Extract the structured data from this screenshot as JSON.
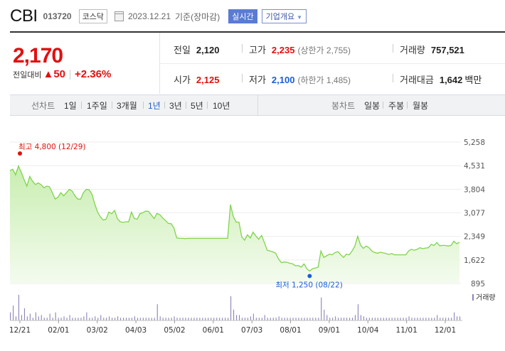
{
  "stock": {
    "name": "CBI",
    "code": "013720",
    "market": "코스닥",
    "date": "2023.12.21",
    "basis": "기준(장마감)",
    "realtime_label": "실시간",
    "company_label": "기업개요",
    "price": "2,170",
    "change_label": "전일대비",
    "change_arrow": "▲",
    "change_value": "50",
    "change_pct": "+2.36%"
  },
  "stats": {
    "prev_close": {
      "label": "전일",
      "value": "2,120"
    },
    "high": {
      "label": "고가",
      "value": "2,235",
      "sub": "(상한가 2,755)"
    },
    "volume": {
      "label": "거래량",
      "value": "757,521"
    },
    "open": {
      "label": "시가",
      "value": "2,125"
    },
    "low": {
      "label": "저가",
      "value": "2,100",
      "sub": "(하한가 1,485)"
    },
    "amount": {
      "label": "거래대금",
      "value": "1,642",
      "unit": "백만"
    }
  },
  "tabs": {
    "line_label": "선차트",
    "line_periods": [
      "1일",
      "1주일",
      "3개월",
      "1년",
      "3년",
      "5년",
      "10년"
    ],
    "active_period": "1년",
    "candle_label": "봉차트",
    "candle_periods": [
      "일봉",
      "주봉",
      "월봉"
    ]
  },
  "chart_data": {
    "type": "area",
    "x_tick_labels": [
      "12/21",
      "02/01",
      "03/02",
      "04/03",
      "05/02",
      "06/01",
      "07/03",
      "08/01",
      "09/01",
      "10/04",
      "11/01",
      "12/01"
    ],
    "y_tick_labels": [
      "5,258",
      "4,531",
      "3,804",
      "3,077",
      "2,349",
      "1,622",
      "895"
    ],
    "ylim": [
      895,
      5258
    ],
    "high_annotation": "최고 4,800 (12/29)",
    "low_annotation": "최저 1,250 (08/22)",
    "volume_label": "거래량",
    "colors": {
      "line": "#7fd44b",
      "fill_top": "#c8eeb0",
      "fill_bottom": "#f4fbef",
      "volume": "#8a84b8",
      "high": "#e01010",
      "low": "#1a5ed6"
    },
    "series": [
      {
        "values": [
          4380,
          4420,
          4250,
          4520,
          4330,
          4100,
          3900,
          4200,
          4050,
          3950,
          4000,
          3950,
          3850,
          3900,
          3880,
          3700,
          3500,
          3560,
          3700,
          3600,
          3700,
          3800,
          3750,
          3600,
          3500,
          3500,
          3700,
          3800,
          3790,
          3650,
          3350,
          3100,
          2950,
          2850,
          2880,
          3100,
          3050,
          3150,
          2900,
          2800,
          2780,
          2800,
          2800,
          3100,
          2900,
          2880,
          3050,
          3080,
          3130,
          3120,
          3010,
          2900,
          3060,
          3020,
          2920,
          2840,
          2750,
          2740,
          2610,
          2300,
          2290,
          2290,
          2280,
          2290,
          2290,
          2290,
          2290,
          2290,
          2290,
          2290,
          2290,
          2290,
          2290,
          2290,
          2290,
          2290,
          2290,
          2290,
          3330,
          2960,
          2790,
          2790,
          2330,
          2230,
          2400,
          2300,
          2480,
          2360,
          2260,
          2380,
          2160,
          1920,
          1900,
          1870,
          1830,
          1650,
          1540,
          1560,
          1550,
          1520,
          1500,
          1440,
          1450,
          1400,
          1500,
          1350,
          1280,
          1350,
          1370,
          1400,
          1900,
          1700,
          1750,
          1800,
          1780,
          1850,
          1880,
          1780,
          1700,
          1800,
          1780,
          1900,
          2050,
          2350,
          2080,
          1980,
          2050,
          2000,
          1900,
          1850,
          1830,
          1860,
          1840,
          1820,
          1790,
          1820,
          1780,
          1780,
          1780,
          1780,
          1780,
          1900,
          1950,
          1920,
          1950,
          2000,
          1970,
          1990,
          2000,
          2100,
          2070,
          2160,
          2060,
          2070,
          2070,
          2050,
          2070,
          2200,
          2120,
          2170
        ]
      }
    ],
    "volume_values": [
      0.3,
      0.55,
      0.15,
      0.95,
      0.2,
      0.45,
      0.15,
      0.25,
      0.1,
      0.3,
      0.15,
      0.2,
      0.1,
      0.1,
      0.25,
      0.1,
      0.3,
      0.1,
      0.1,
      0.15,
      0.1,
      0.2,
      0.1,
      0.1,
      0.1,
      0.1,
      0.15,
      0.3,
      0.1,
      0.1,
      0.15,
      0.1,
      0.2,
      0.1,
      0.1,
      0.15,
      0.1,
      0.1,
      0.15,
      0.1,
      0.1,
      0.1,
      0.1,
      0.1,
      0.15,
      0.1,
      0.1,
      0.1,
      0.1,
      0.1,
      0.1,
      0.1,
      0.6,
      0.15,
      0.1,
      0.1,
      0.1,
      0.1,
      0.15,
      0.1,
      0.1,
      0.1,
      0.1,
      0.1,
      0.1,
      0.1,
      0.1,
      0.1,
      0.1,
      0.1,
      0.1,
      0.1,
      0.1,
      0.1,
      0.1,
      0.1,
      0.1,
      0.1,
      0.9,
      0.4,
      0.2,
      0.2,
      0.1,
      0.1,
      0.1,
      0.15,
      0.25,
      0.1,
      0.1,
      0.1,
      0.2,
      0.1,
      0.1,
      0.1,
      0.1,
      0.15,
      0.1,
      0.1,
      0.1,
      0.1,
      0.1,
      0.1,
      0.1,
      0.1,
      0.1,
      0.1,
      0.1,
      0.1,
      0.1,
      0.1,
      0.85,
      0.4,
      0.2,
      0.1,
      0.1,
      0.15,
      0.1,
      0.1,
      0.1,
      0.1,
      0.1,
      0.1,
      0.2,
      0.6,
      0.2,
      0.15,
      0.1,
      0.1,
      0.1,
      0.1,
      0.1,
      0.1,
      0.1,
      0.1,
      0.1,
      0.1,
      0.1,
      0.1,
      0.1,
      0.1,
      0.1,
      0.15,
      0.1,
      0.1,
      0.1,
      0.1,
      0.1,
      0.1,
      0.1,
      0.1,
      0.1,
      0.2,
      0.1,
      0.1,
      0.1,
      0.1,
      0.1,
      0.3,
      0.15,
      0.15
    ]
  }
}
